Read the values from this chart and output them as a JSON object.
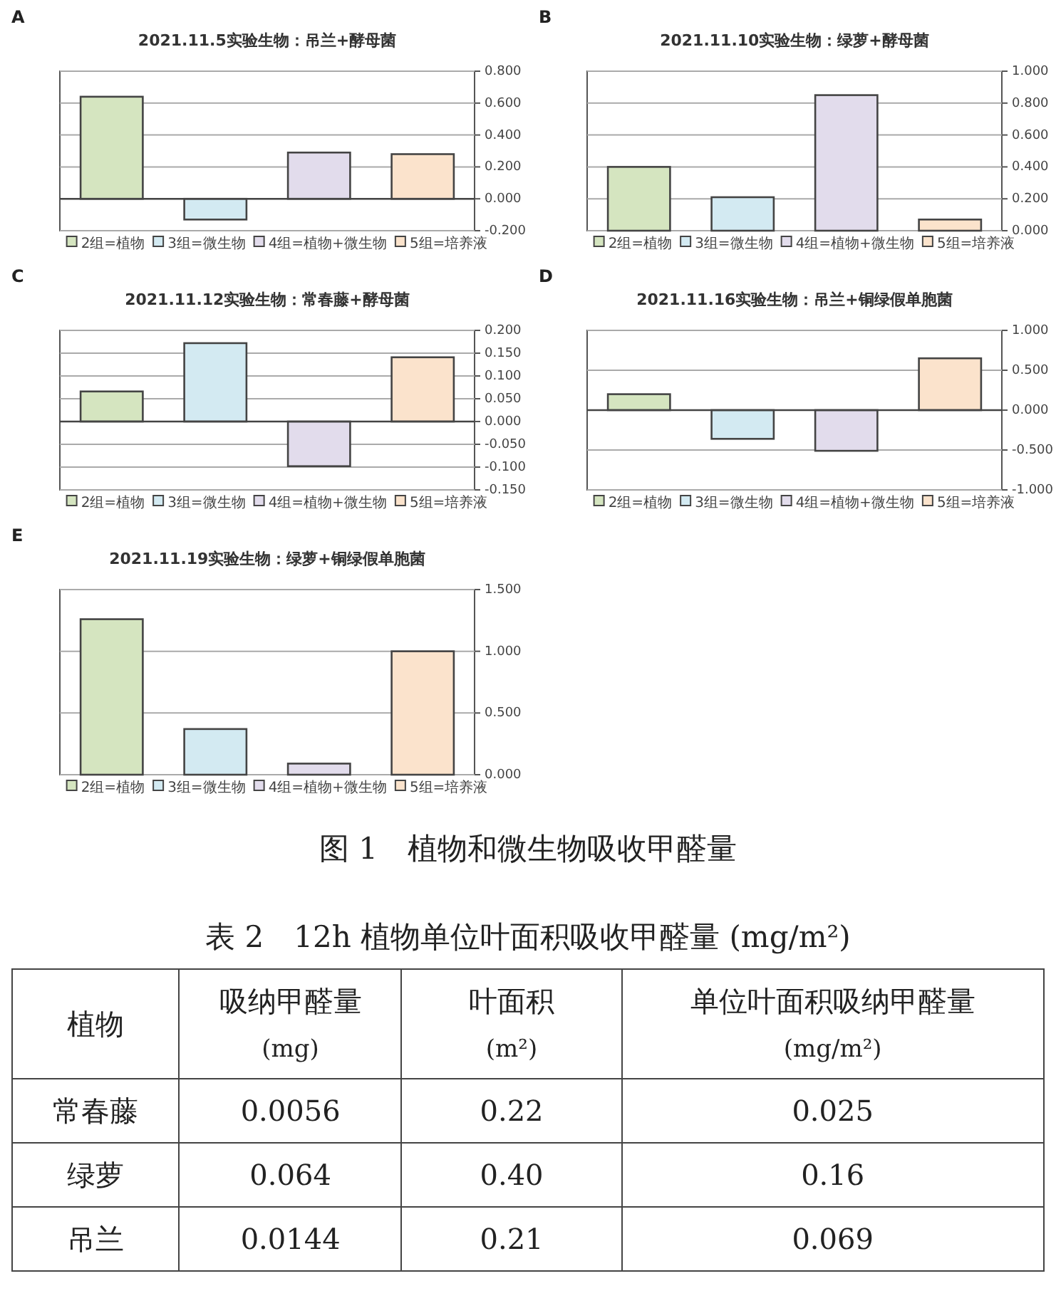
{
  "chart_data": [
    {
      "type": "bar",
      "title": "2021.11.5实验生物：吊兰+酵母菌",
      "annotations": [
        "A"
      ],
      "categories": [
        null
      ],
      "series": [
        {
          "name": "2组=植物",
          "color": "#d5e5c0",
          "values": [
            0.64
          ]
        },
        {
          "name": "3组=微生物",
          "color": "#d3eaf2",
          "values": [
            -0.13
          ]
        },
        {
          "name": "4组=植物+微生物",
          "color": "#e2dcec",
          "values": [
            0.29
          ]
        },
        {
          "name": "5组=培养液",
          "color": "#fbe3cc",
          "values": [
            0.28
          ]
        }
      ],
      "ylim": [
        -0.2,
        0.8
      ],
      "yticks": [
        {
          "value": -0.2,
          "label": "-0.200"
        },
        {
          "value": 0,
          "label": "0.000"
        },
        {
          "value": 0.2,
          "label": "0.200"
        },
        {
          "value": 0.4,
          "label": "0.400"
        },
        {
          "value": 0.6,
          "label": "0.600"
        },
        {
          "value": 0.8,
          "label": "0.800"
        }
      ],
      "grid": "y",
      "legend": "bottom"
    },
    {
      "type": "bar",
      "title": "2021.11.10实验生物：绿萝+酵母菌",
      "annotations": [
        "B"
      ],
      "categories": [
        null
      ],
      "series": [
        {
          "name": "2组=植物",
          "color": "#d5e5c0",
          "values": [
            0.4
          ]
        },
        {
          "name": "3组=微生物",
          "color": "#d3eaf2",
          "values": [
            0.21
          ]
        },
        {
          "name": "4组=植物+微生物",
          "color": "#e2dcec",
          "values": [
            0.85
          ]
        },
        {
          "name": "5组=培养液",
          "color": "#fbe3cc",
          "values": [
            0.07
          ]
        }
      ],
      "ylim": [
        0,
        1
      ],
      "yticks": [
        {
          "value": 0,
          "label": "0.000"
        },
        {
          "value": 0.2,
          "label": "0.200"
        },
        {
          "value": 0.4,
          "label": "0.400"
        },
        {
          "value": 0.6,
          "label": "0.600"
        },
        {
          "value": 0.8,
          "label": "0.800"
        },
        {
          "value": 1,
          "label": "1.000"
        }
      ],
      "grid": "y",
      "legend": "bottom"
    },
    {
      "type": "bar",
      "title": "2021.11.12实验生物：常春藤+酵母菌",
      "annotations": [
        "C"
      ],
      "categories": [
        null
      ],
      "series": [
        {
          "name": "2组=植物",
          "color": "#d5e5c0",
          "values": [
            0.066
          ]
        },
        {
          "name": "3组=微生物",
          "color": "#d3eaf2",
          "values": [
            0.172
          ]
        },
        {
          "name": "4组=植物+微生物",
          "color": "#e2dcec",
          "values": [
            -0.098
          ]
        },
        {
          "name": "5组=培养液",
          "color": "#fbe3cc",
          "values": [
            0.141
          ]
        }
      ],
      "ylim": [
        -0.15,
        0.2
      ],
      "yticks": [
        {
          "value": -0.15,
          "label": "-0.150"
        },
        {
          "value": -0.1,
          "label": "-0.100"
        },
        {
          "value": -0.05,
          "label": "-0.050"
        },
        {
          "value": 0,
          "label": "0.000"
        },
        {
          "value": 0.05,
          "label": "0.050"
        },
        {
          "value": 0.1,
          "label": "0.100"
        },
        {
          "value": 0.15,
          "label": "0.150"
        },
        {
          "value": 0.2,
          "label": "0.200"
        }
      ],
      "grid": "y",
      "legend": "bottom"
    },
    {
      "type": "bar",
      "title": "2021.11.16实验生物：吊兰+铜绿假单胞菌",
      "annotations": [
        "D"
      ],
      "categories": [
        null
      ],
      "series": [
        {
          "name": "2组=植物",
          "color": "#d5e5c0",
          "values": [
            0.2
          ]
        },
        {
          "name": "3组=微生物",
          "color": "#d3eaf2",
          "values": [
            -0.36
          ]
        },
        {
          "name": "4组=植物+微生物",
          "color": "#e2dcec",
          "values": [
            -0.51
          ]
        },
        {
          "name": "5组=培养液",
          "color": "#fbe3cc",
          "values": [
            0.65
          ]
        }
      ],
      "ylim": [
        -1,
        1
      ],
      "yticks": [
        {
          "value": -1,
          "label": "-1.000"
        },
        {
          "value": -0.5,
          "label": "-0.500"
        },
        {
          "value": 0,
          "label": "0.000"
        },
        {
          "value": 0.5,
          "label": "0.500"
        },
        {
          "value": 1,
          "label": "1.000"
        }
      ],
      "grid": "y",
      "legend": "bottom"
    },
    {
      "type": "bar",
      "title": "2021.11.19实验生物：绿萝+铜绿假单胞菌",
      "annotations": [
        "E"
      ],
      "categories": [
        null
      ],
      "series": [
        {
          "name": "2组=植物",
          "color": "#d5e5c0",
          "values": [
            1.26
          ]
        },
        {
          "name": "3组=微生物",
          "color": "#d3eaf2",
          "values": [
            0.37
          ]
        },
        {
          "name": "4组=植物+微生物",
          "color": "#e2dcec",
          "values": [
            0.09
          ]
        },
        {
          "name": "5组=培养液",
          "color": "#fbe3cc",
          "values": [
            1.0
          ]
        }
      ],
      "ylim": [
        0,
        1.5
      ],
      "yticks": [
        {
          "value": 0,
          "label": "0.000"
        },
        {
          "value": 0.5,
          "label": "0.500"
        },
        {
          "value": 1,
          "label": "1.000"
        },
        {
          "value": 1.5,
          "label": "1.500"
        }
      ],
      "grid": "y",
      "legend": "bottom"
    },
    {
      "type": "other",
      "title": "图 1　植物和微生物吸收甲醛量"
    },
    {
      "type": "other",
      "title": "表 2　12h 植物单位叶面积吸收甲醛量 (mg/m²)",
      "annotations": [
        "植物",
        "吸纳甲醛量 (mg)",
        "叶面积 (m²)",
        "单位叶面积吸纳甲醛量 (mg/m²)",
        "常春藤",
        "0.0056",
        "0.22",
        "0.025",
        "绿萝",
        "0.064",
        "0.40",
        "0.16",
        "吊兰",
        "0.0144",
        "0.21",
        "0.069"
      ]
    }
  ]
}
